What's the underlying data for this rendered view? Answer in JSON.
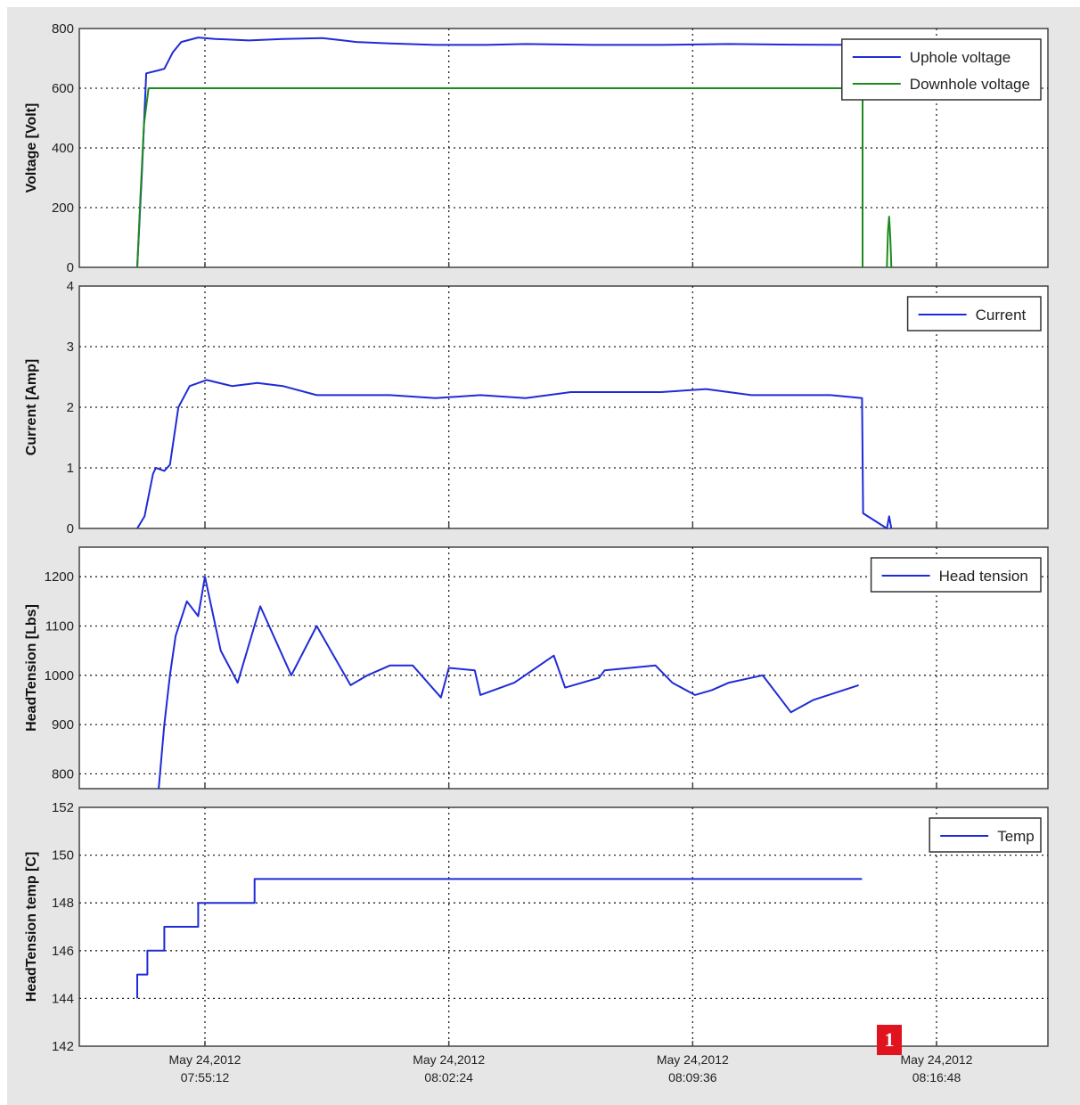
{
  "colors": {
    "blue": "#1f2bd6",
    "green": "#1e8a1e",
    "grid": "#222222",
    "frame": "#444444"
  },
  "marker_label": "1",
  "chart_data": [
    {
      "type": "line",
      "ylabel": "Voltage [Volt]",
      "ylim": [
        0,
        800
      ],
      "yticks": [
        "0",
        "200",
        "400",
        "600",
        "800"
      ],
      "grid": true,
      "legend": "top-right",
      "x_ticks": [
        "May 24,2012 07:55:12",
        "May 24,2012 08:02:24",
        "May 24,2012 08:09:36",
        "May 24,2012 08:16:48"
      ],
      "series": [
        {
          "name": "Uphole voltage",
          "color": "#1f2bd6",
          "x": [
            "07:53:12",
            "07:53:20",
            "07:53:28",
            "07:53:50",
            "07:54:00",
            "07:54:15",
            "07:54:30",
            "07:55:00",
            "07:55:30",
            "07:56:30",
            "07:57:30",
            "07:58:40",
            "07:59:40",
            "08:00:40",
            "08:02:00",
            "08:03:30",
            "08:04:40",
            "08:06:40",
            "08:08:40",
            "08:10:40",
            "08:12:40",
            "08:14:36"
          ],
          "y": [
            0,
            300,
            650,
            660,
            665,
            720,
            755,
            770,
            765,
            760,
            765,
            768,
            755,
            750,
            745,
            745,
            748,
            745,
            745,
            748,
            746,
            745
          ]
        },
        {
          "name": "Downhole voltage",
          "color": "#1e8a1e",
          "x": [
            "07:53:12",
            "07:53:18",
            "07:53:24",
            "07:53:32",
            "07:54:00",
            "08:00:00",
            "08:05:00",
            "08:10:00",
            "08:14:30",
            "08:14:34",
            "08:14:37",
            "08:14:37",
            "08:14:40",
            "08:15:20",
            "08:15:22",
            "08:15:24",
            "08:15:26",
            "08:15:28",
            "08:15:30"
          ],
          "y": [
            0,
            250,
            480,
            600,
            600,
            600,
            600,
            600,
            600,
            600,
            600,
            0,
            null,
            0,
            120,
            170,
            100,
            0,
            0
          ]
        }
      ]
    },
    {
      "type": "line",
      "ylabel": "Current [Amp]",
      "ylim": [
        0,
        4
      ],
      "yticks": [
        "0",
        "1",
        "2",
        "3",
        "4"
      ],
      "grid": true,
      "legend": "top-right",
      "series": [
        {
          "name": "Current",
          "color": "#1f2bd6",
          "x": [
            "07:53:12",
            "07:53:25",
            "07:53:40",
            "07:53:45",
            "07:54:00",
            "07:54:10",
            "07:54:25",
            "07:54:45",
            "07:55:15",
            "07:56:00",
            "07:56:45",
            "07:57:30",
            "07:58:30",
            "07:59:30",
            "08:00:40",
            "08:02:00",
            "08:03:20",
            "08:04:40",
            "08:06:00",
            "08:07:20",
            "08:08:40",
            "08:10:00",
            "08:11:20",
            "08:12:40",
            "08:13:40",
            "08:14:36",
            "08:14:38",
            "08:15:20",
            "08:15:24",
            "08:15:28"
          ],
          "y": [
            0,
            0.2,
            0.9,
            1.0,
            0.95,
            1.05,
            2.0,
            2.35,
            2.45,
            2.35,
            2.4,
            2.35,
            2.2,
            2.2,
            2.2,
            2.15,
            2.2,
            2.15,
            2.25,
            2.25,
            2.25,
            2.3,
            2.2,
            2.2,
            2.2,
            2.15,
            0.25,
            0.0,
            0.2,
            0.0
          ]
        }
      ]
    },
    {
      "type": "line",
      "ylabel": "HeadTension [Lbs]",
      "ylim": [
        770,
        1260
      ],
      "yticks": [
        "800",
        "900",
        "1000",
        "1100",
        "1200"
      ],
      "grid": true,
      "legend": "top-right",
      "series": [
        {
          "name": "Head tension",
          "color": "#1f2bd6",
          "x": [
            "07:53:50",
            "07:54:00",
            "07:54:10",
            "07:54:20",
            "07:54:40",
            "07:55:00",
            "07:55:12",
            "07:55:40",
            "07:56:10",
            "07:56:50",
            "07:57:45",
            "07:58:30",
            "07:59:00",
            "07:59:30",
            "08:00:00",
            "08:00:40",
            "08:01:20",
            "08:02:10",
            "08:02:24",
            "08:03:10",
            "08:03:20",
            "08:04:20",
            "08:05:30",
            "08:05:50",
            "08:06:50",
            "08:07:00",
            "08:08:30",
            "08:09:00",
            "08:09:40",
            "08:10:10",
            "08:10:40",
            "08:11:40",
            "08:12:30",
            "08:13:10",
            "08:14:30"
          ],
          "y": [
            770,
            900,
            1000,
            1080,
            1150,
            1120,
            1200,
            1050,
            985,
            1140,
            1000,
            1100,
            1040,
            980,
            1000,
            1020,
            1020,
            955,
            1015,
            1010,
            960,
            985,
            1040,
            975,
            995,
            1010,
            1020,
            985,
            960,
            970,
            985,
            1000,
            925,
            950,
            980
          ]
        }
      ]
    },
    {
      "type": "line",
      "ylabel": "HeadTension temp [C]",
      "ylim": [
        142,
        152
      ],
      "yticks": [
        "142",
        "144",
        "146",
        "148",
        "150",
        "152"
      ],
      "grid": true,
      "legend": "top-right",
      "series": [
        {
          "name": "Temp",
          "color": "#1f2bd6",
          "x": [
            "07:53:12",
            "07:53:12",
            "07:53:30",
            "07:53:30",
            "07:54:00",
            "07:54:00",
            "07:54:20",
            "07:54:20",
            "07:55:00",
            "07:55:00",
            "07:56:40",
            "07:56:40",
            "08:11:20",
            "08:14:36"
          ],
          "y": [
            144,
            145,
            145,
            146,
            146,
            147,
            147,
            147,
            147,
            148,
            148,
            149,
            149,
            149
          ]
        }
      ]
    }
  ]
}
